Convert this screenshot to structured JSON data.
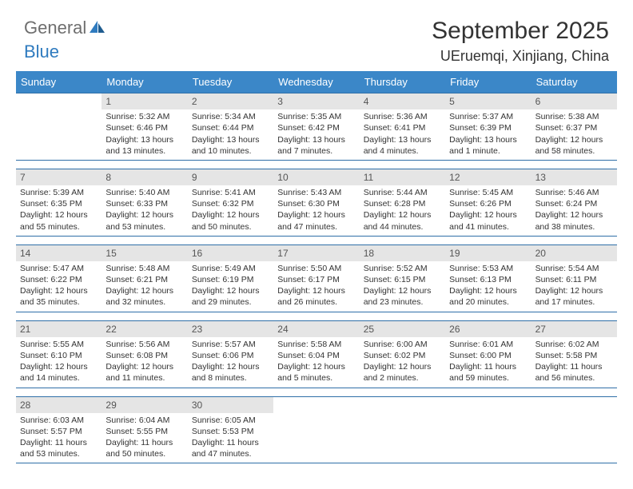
{
  "logo": {
    "general": "General",
    "blue": "Blue"
  },
  "title": "September 2025",
  "location": "UEruemqi, Xinjiang, China",
  "weekdays": [
    "Sunday",
    "Monday",
    "Tuesday",
    "Wednesday",
    "Thursday",
    "Friday",
    "Saturday"
  ],
  "colors": {
    "header_bar": "#3b87c8",
    "week_border": "#2f6fa8",
    "day_num_bg": "#e5e5e5",
    "text": "#333333",
    "logo_gray": "#6e6e6e",
    "logo_blue": "#2f7bbf"
  },
  "start_offset": 1,
  "days": [
    {
      "n": "1",
      "sr": "5:32 AM",
      "ss": "6:46 PM",
      "dl": "13 hours and 13 minutes."
    },
    {
      "n": "2",
      "sr": "5:34 AM",
      "ss": "6:44 PM",
      "dl": "13 hours and 10 minutes."
    },
    {
      "n": "3",
      "sr": "5:35 AM",
      "ss": "6:42 PM",
      "dl": "13 hours and 7 minutes."
    },
    {
      "n": "4",
      "sr": "5:36 AM",
      "ss": "6:41 PM",
      "dl": "13 hours and 4 minutes."
    },
    {
      "n": "5",
      "sr": "5:37 AM",
      "ss": "6:39 PM",
      "dl": "13 hours and 1 minute."
    },
    {
      "n": "6",
      "sr": "5:38 AM",
      "ss": "6:37 PM",
      "dl": "12 hours and 58 minutes."
    },
    {
      "n": "7",
      "sr": "5:39 AM",
      "ss": "6:35 PM",
      "dl": "12 hours and 55 minutes."
    },
    {
      "n": "8",
      "sr": "5:40 AM",
      "ss": "6:33 PM",
      "dl": "12 hours and 53 minutes."
    },
    {
      "n": "9",
      "sr": "5:41 AM",
      "ss": "6:32 PM",
      "dl": "12 hours and 50 minutes."
    },
    {
      "n": "10",
      "sr": "5:43 AM",
      "ss": "6:30 PM",
      "dl": "12 hours and 47 minutes."
    },
    {
      "n": "11",
      "sr": "5:44 AM",
      "ss": "6:28 PM",
      "dl": "12 hours and 44 minutes."
    },
    {
      "n": "12",
      "sr": "5:45 AM",
      "ss": "6:26 PM",
      "dl": "12 hours and 41 minutes."
    },
    {
      "n": "13",
      "sr": "5:46 AM",
      "ss": "6:24 PM",
      "dl": "12 hours and 38 minutes."
    },
    {
      "n": "14",
      "sr": "5:47 AM",
      "ss": "6:22 PM",
      "dl": "12 hours and 35 minutes."
    },
    {
      "n": "15",
      "sr": "5:48 AM",
      "ss": "6:21 PM",
      "dl": "12 hours and 32 minutes."
    },
    {
      "n": "16",
      "sr": "5:49 AM",
      "ss": "6:19 PM",
      "dl": "12 hours and 29 minutes."
    },
    {
      "n": "17",
      "sr": "5:50 AM",
      "ss": "6:17 PM",
      "dl": "12 hours and 26 minutes."
    },
    {
      "n": "18",
      "sr": "5:52 AM",
      "ss": "6:15 PM",
      "dl": "12 hours and 23 minutes."
    },
    {
      "n": "19",
      "sr": "5:53 AM",
      "ss": "6:13 PM",
      "dl": "12 hours and 20 minutes."
    },
    {
      "n": "20",
      "sr": "5:54 AM",
      "ss": "6:11 PM",
      "dl": "12 hours and 17 minutes."
    },
    {
      "n": "21",
      "sr": "5:55 AM",
      "ss": "6:10 PM",
      "dl": "12 hours and 14 minutes."
    },
    {
      "n": "22",
      "sr": "5:56 AM",
      "ss": "6:08 PM",
      "dl": "12 hours and 11 minutes."
    },
    {
      "n": "23",
      "sr": "5:57 AM",
      "ss": "6:06 PM",
      "dl": "12 hours and 8 minutes."
    },
    {
      "n": "24",
      "sr": "5:58 AM",
      "ss": "6:04 PM",
      "dl": "12 hours and 5 minutes."
    },
    {
      "n": "25",
      "sr": "6:00 AM",
      "ss": "6:02 PM",
      "dl": "12 hours and 2 minutes."
    },
    {
      "n": "26",
      "sr": "6:01 AM",
      "ss": "6:00 PM",
      "dl": "11 hours and 59 minutes."
    },
    {
      "n": "27",
      "sr": "6:02 AM",
      "ss": "5:58 PM",
      "dl": "11 hours and 56 minutes."
    },
    {
      "n": "28",
      "sr": "6:03 AM",
      "ss": "5:57 PM",
      "dl": "11 hours and 53 minutes."
    },
    {
      "n": "29",
      "sr": "6:04 AM",
      "ss": "5:55 PM",
      "dl": "11 hours and 50 minutes."
    },
    {
      "n": "30",
      "sr": "6:05 AM",
      "ss": "5:53 PM",
      "dl": "11 hours and 47 minutes."
    }
  ]
}
